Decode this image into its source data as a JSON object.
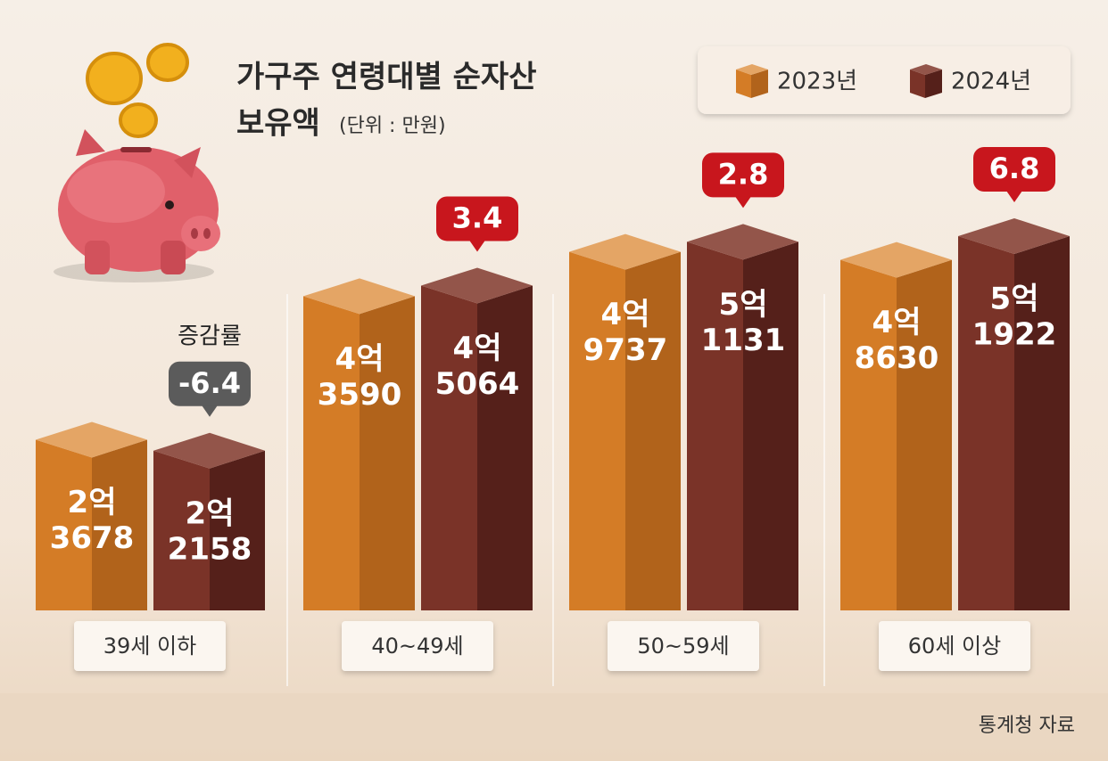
{
  "chart_data": {
    "type": "bar3d",
    "title": [
      "가구주 연령대별 순자산",
      "보유액"
    ],
    "unit": "(단위 : 만원)",
    "source": "통계청 자료",
    "categories": [
      "39세 이하",
      "40~49세",
      "50~59세",
      "60세 이상"
    ],
    "series": [
      {
        "name": "2023년",
        "color": "#d47c26",
        "side_color": "#b1631b",
        "top_color": "#e4a565",
        "values": [
          23678,
          43590,
          49737,
          48630
        ],
        "value_labels": [
          [
            "2억",
            "3678"
          ],
          [
            "4억",
            "3590"
          ],
          [
            "4억",
            "9737"
          ],
          [
            "4억",
            "8630"
          ]
        ]
      },
      {
        "name": "2024년",
        "color": "#7a3328",
        "side_color": "#55201a",
        "top_color": "#93554a",
        "values": [
          22158,
          45064,
          51131,
          51922
        ],
        "value_labels": [
          [
            "2억",
            "2158"
          ],
          [
            "4억",
            "5064"
          ],
          [
            "5억",
            "1131"
          ],
          [
            "5억",
            "1922"
          ]
        ]
      }
    ],
    "change": {
      "label": "증감률",
      "values": [
        -6.4,
        3.4,
        2.8,
        6.8
      ],
      "positive_color": "#c8161d",
      "negative_color": "#5b5b5b"
    }
  }
}
